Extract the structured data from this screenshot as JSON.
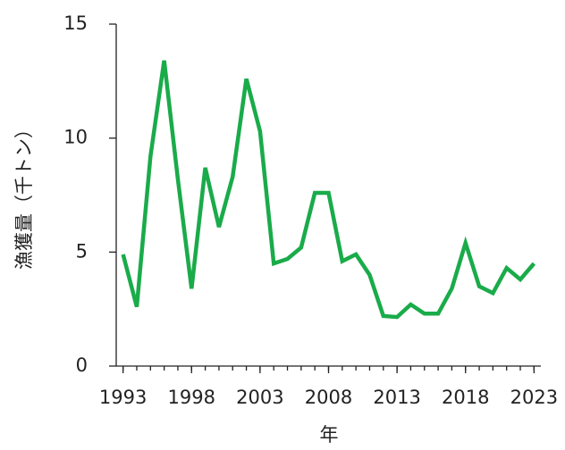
{
  "chart_data": {
    "type": "line",
    "xlabel": "年",
    "ylabel": "漁獲量（千トン）",
    "x": [
      1993,
      1994,
      1995,
      1996,
      1997,
      1998,
      1999,
      2000,
      2001,
      2002,
      2003,
      2004,
      2005,
      2006,
      2007,
      2008,
      2009,
      2010,
      2011,
      2012,
      2013,
      2014,
      2015,
      2016,
      2017,
      2018,
      2019,
      2020,
      2021,
      2022,
      2023
    ],
    "series": [
      {
        "color": "#1aab4a",
        "values": [
          4.9,
          2.6,
          9.2,
          13.4,
          8.2,
          3.4,
          8.7,
          6.1,
          8.3,
          12.6,
          10.3,
          4.5,
          4.7,
          5.2,
          7.6,
          7.6,
          4.6,
          4.9,
          4.0,
          2.2,
          2.15,
          2.7,
          2.3,
          2.3,
          3.4,
          5.4,
          3.5,
          3.2,
          4.3,
          3.8,
          4.5
        ]
      }
    ],
    "xlim": [
      1992.5,
      2023.5
    ],
    "xticks": [
      1993,
      1998,
      2003,
      2008,
      2013,
      2018,
      2023
    ],
    "ylim": [
      0,
      15
    ],
    "yticks": [
      0,
      5,
      10,
      15
    ]
  }
}
